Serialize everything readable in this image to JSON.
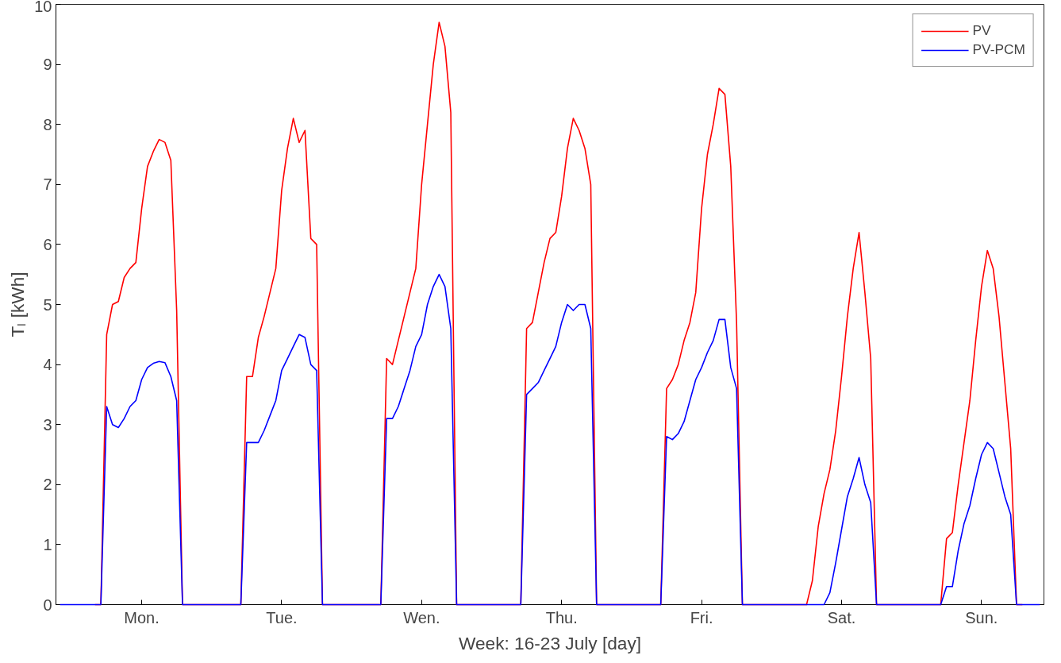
{
  "chart_data": {
    "type": "line",
    "xlabel": "Week: 16-23 July [day]",
    "ylabel": "Tₗ [kWh]",
    "ylim": [
      0,
      10
    ],
    "yticks": [
      0,
      1,
      2,
      3,
      4,
      5,
      6,
      7,
      8,
      9,
      10
    ],
    "categories": [
      null,
      null,
      null,
      null,
      null,
      null,
      null,
      null,
      null,
      null,
      null,
      null,
      null,
      null,
      "Mon.",
      null,
      null,
      null,
      null,
      null,
      null,
      null,
      null,
      null,
      null,
      null,
      null,
      null,
      null,
      null,
      null,
      null,
      null,
      null,
      null,
      null,
      null,
      null,
      "Tue.",
      null,
      null,
      null,
      null,
      null,
      null,
      null,
      null,
      null,
      null,
      null,
      null,
      null,
      null,
      null,
      null,
      null,
      null,
      null,
      null,
      null,
      null,
      null,
      "Wen.",
      null,
      null,
      null,
      null,
      null,
      null,
      null,
      null,
      null,
      null,
      null,
      null,
      null,
      null,
      null,
      null,
      null,
      null,
      null,
      null,
      null,
      null,
      null,
      "Thu.",
      null,
      null,
      null,
      null,
      null,
      null,
      null,
      null,
      null,
      null,
      null,
      null,
      null,
      null,
      null,
      null,
      null,
      null,
      null,
      null,
      null,
      null,
      null,
      "Fri.",
      null,
      null,
      null,
      null,
      null,
      null,
      null,
      null,
      null,
      null,
      null,
      null,
      null,
      null,
      null,
      null,
      null,
      null,
      null,
      null,
      null,
      null,
      null,
      "Sat.",
      null,
      null,
      null,
      null,
      null,
      null,
      null,
      null,
      null,
      null,
      null,
      null,
      null,
      null,
      null,
      null,
      null,
      null,
      null,
      null,
      null,
      null,
      null,
      "Sun.",
      null,
      null,
      null,
      null,
      null,
      null,
      null,
      null,
      null,
      null
    ],
    "grid": false,
    "legend": "top right",
    "line_style": "solid",
    "marker": "none",
    "series": [
      {
        "name": "PV",
        "color": "#ff0000",
        "values": [
          null,
          null,
          null,
          null,
          null,
          null,
          0,
          0,
          4.5,
          5.0,
          5.05,
          5.45,
          5.6,
          5.7,
          6.6,
          7.3,
          7.55,
          7.75,
          7.7,
          7.4,
          4.9,
          0,
          0,
          0,
          0,
          0,
          0,
          0,
          0,
          0,
          0,
          0,
          3.8,
          3.8,
          4.45,
          4.8,
          5.2,
          5.6,
          6.9,
          7.6,
          8.1,
          7.7,
          7.9,
          6.1,
          6.0,
          0,
          0,
          0,
          0,
          0,
          0,
          0,
          0,
          0,
          0,
          0,
          4.1,
          4.0,
          4.4,
          4.8,
          5.2,
          5.6,
          7.0,
          8.0,
          9.0,
          9.7,
          9.3,
          8.2,
          0,
          0,
          0,
          0,
          0,
          0,
          0,
          0,
          0,
          0,
          0,
          0,
          4.6,
          4.7,
          5.2,
          5.7,
          6.1,
          6.2,
          6.8,
          7.6,
          8.1,
          7.9,
          7.6,
          7.0,
          0,
          0,
          0,
          0,
          0,
          0,
          0,
          0,
          0,
          0,
          0,
          0,
          3.6,
          3.75,
          4.0,
          4.4,
          4.7,
          5.2,
          6.6,
          7.5,
          8.0,
          8.6,
          8.5,
          7.3,
          4.7,
          0,
          0,
          0,
          0,
          0,
          0,
          0,
          0,
          0,
          0,
          0,
          0,
          0.4,
          1.3,
          1.85,
          2.25,
          2.9,
          3.8,
          4.8,
          5.6,
          6.2,
          5.2,
          4.1,
          0,
          0,
          0,
          0,
          0,
          0,
          0,
          0,
          0,
          0,
          0,
          0,
          1.1,
          1.2,
          2.0,
          2.7,
          3.4,
          4.4,
          5.3,
          5.9,
          5.6,
          4.8,
          3.7,
          2.6,
          0,
          0,
          null,
          null,
          null
        ]
      },
      {
        "name": "PV-PCM",
        "color": "#0000ff",
        "values": [
          0,
          0,
          0,
          0,
          0,
          0,
          0,
          0,
          3.3,
          3.0,
          2.95,
          3.1,
          3.3,
          3.4,
          3.75,
          3.95,
          4.02,
          4.05,
          4.03,
          3.8,
          3.4,
          0,
          0,
          0,
          0,
          0,
          0,
          0,
          0,
          0,
          0,
          0,
          2.7,
          2.7,
          2.7,
          2.9,
          3.15,
          3.4,
          3.9,
          4.1,
          4.3,
          4.5,
          4.45,
          4.0,
          3.9,
          0,
          0,
          0,
          0,
          0,
          0,
          0,
          0,
          0,
          0,
          0,
          3.1,
          3.1,
          3.3,
          3.6,
          3.9,
          4.3,
          4.5,
          5.0,
          5.3,
          5.5,
          5.3,
          4.6,
          0,
          0,
          0,
          0,
          0,
          0,
          0,
          0,
          0,
          0,
          0,
          0,
          3.5,
          3.6,
          3.7,
          3.9,
          4.1,
          4.3,
          4.7,
          5.0,
          4.9,
          5.0,
          5.0,
          4.6,
          0,
          0,
          0,
          0,
          0,
          0,
          0,
          0,
          0,
          0,
          0,
          0,
          2.8,
          2.75,
          2.85,
          3.05,
          3.4,
          3.75,
          3.95,
          4.2,
          4.4,
          4.75,
          4.75,
          3.95,
          3.6,
          0,
          0,
          0,
          0,
          0,
          0,
          0,
          0,
          0,
          0,
          0,
          0,
          0,
          0,
          0,
          0.2,
          0.7,
          1.25,
          1.8,
          2.1,
          2.45,
          2.0,
          1.7,
          0,
          0,
          0,
          0,
          0,
          0,
          0,
          0,
          0,
          0,
          0,
          0,
          0.3,
          0.3,
          0.9,
          1.35,
          1.65,
          2.1,
          2.5,
          2.7,
          2.6,
          2.2,
          1.8,
          1.5,
          0,
          0,
          0,
          0,
          0
        ]
      }
    ]
  }
}
